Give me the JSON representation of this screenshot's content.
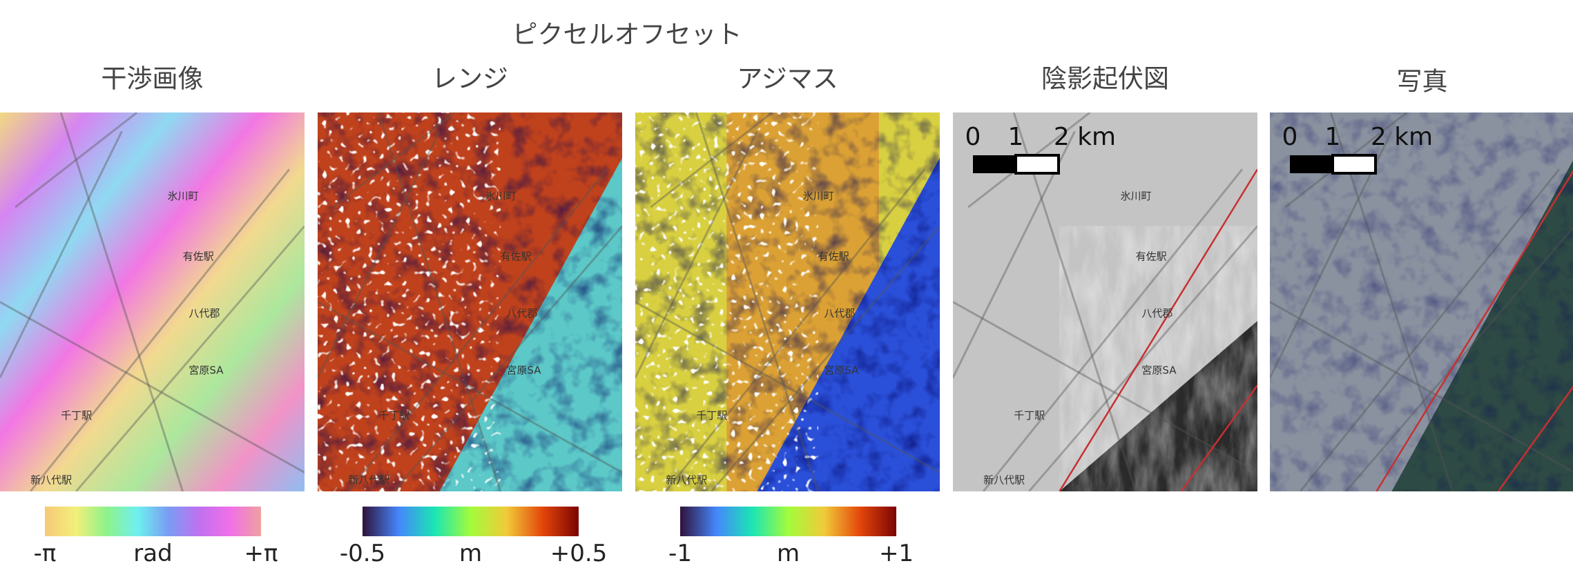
{
  "title": "ピクセルオフセット",
  "panels": [
    {
      "title": "干渉画像",
      "colorbar": {
        "min_label": "-π",
        "unit": "rad",
        "max_label": "+π",
        "colormap": [
          "#f7c878",
          "#f2f07a",
          "#8ef28a",
          "#6ef0f0",
          "#7a9cf2",
          "#c070f0",
          "#f070e8",
          "#f0a0a0"
        ]
      }
    },
    {
      "title": "レンジ",
      "colorbar": {
        "min_label": "-0.5",
        "unit": "m",
        "max_label": "+0.5",
        "colormap": [
          "#30123b",
          "#4686fb",
          "#1be5b5",
          "#a2fc3c",
          "#f1ca3a",
          "#e4460a",
          "#7a0403"
        ]
      }
    },
    {
      "title": "アジマス",
      "colorbar": {
        "min_label": "-1",
        "unit": "m",
        "max_label": "+1",
        "colormap": [
          "#30123b",
          "#4686fb",
          "#1be5b5",
          "#a2fc3c",
          "#f1ca3a",
          "#e4460a",
          "#7a0403"
        ]
      }
    },
    {
      "title": "陰影起伏図",
      "scale_bar": {
        "labels": [
          "0",
          "1",
          "2 km"
        ]
      }
    },
    {
      "title": "写真",
      "scale_bar": {
        "labels": [
          "0",
          "1",
          "2 km"
        ]
      }
    }
  ],
  "map_labels": [
    "氷川町",
    "有佐駅",
    "八代郡",
    "宮原SA",
    "千丁駅",
    "新八代駅"
  ]
}
